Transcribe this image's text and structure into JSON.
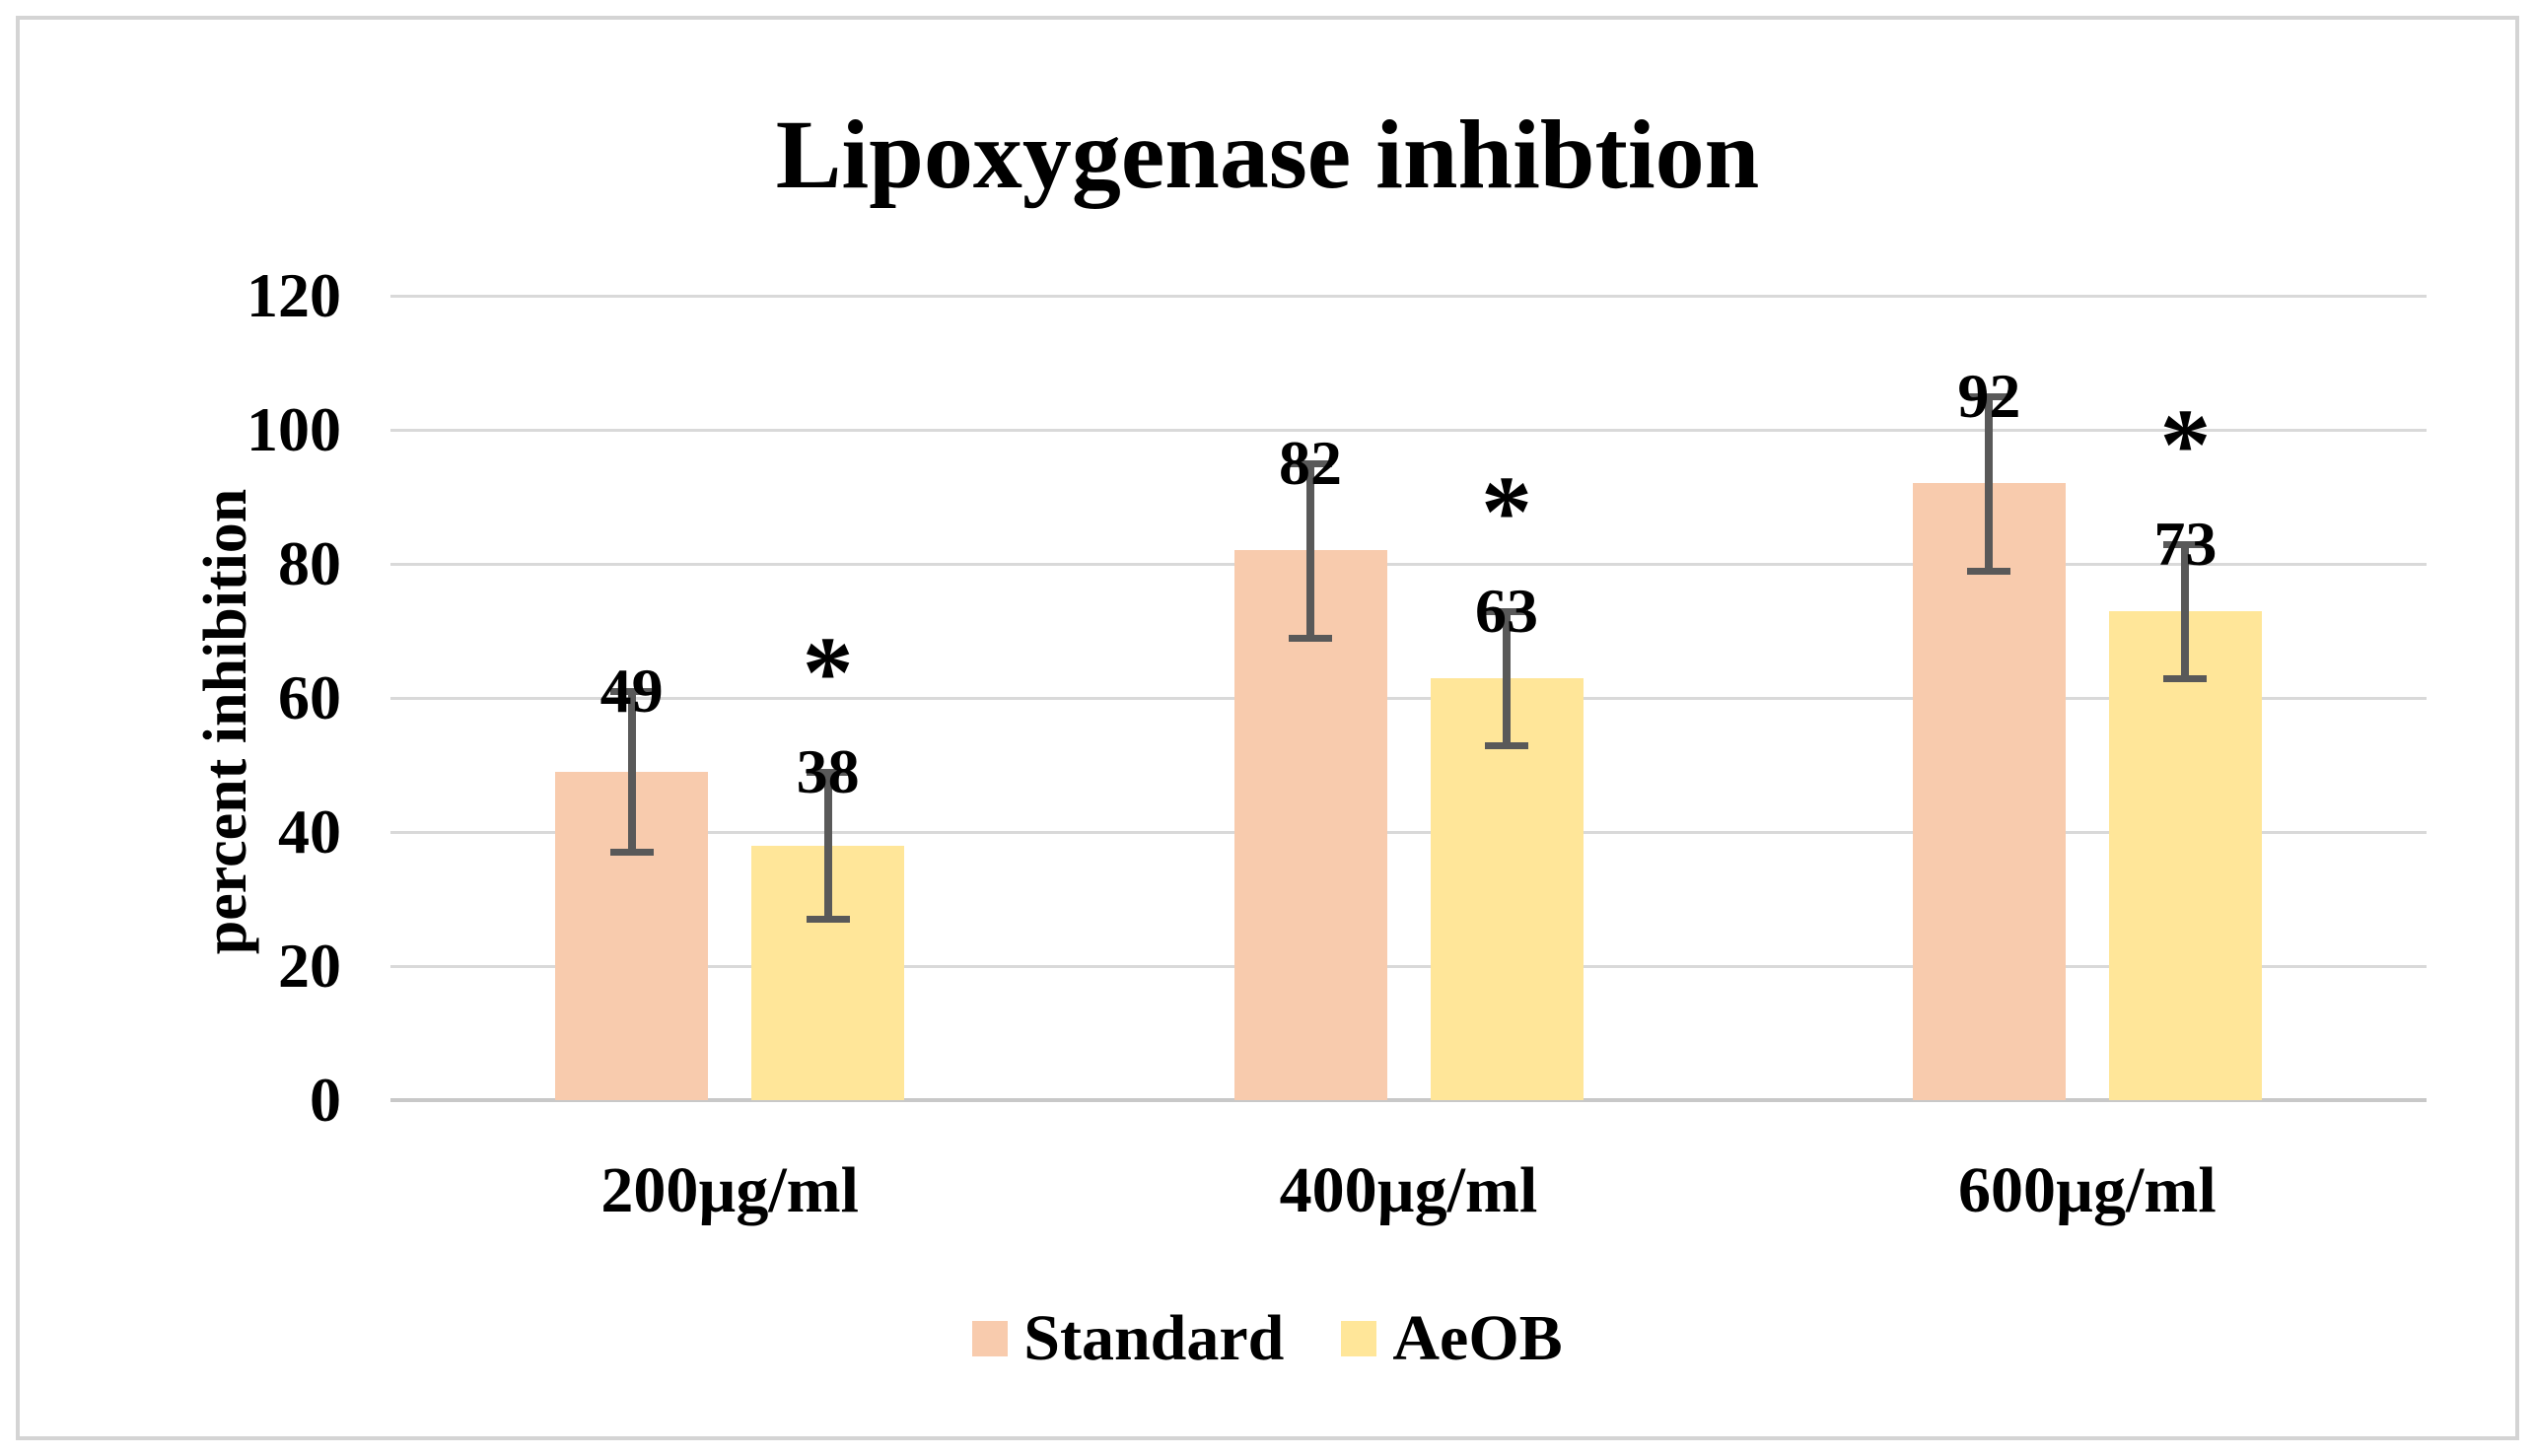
{
  "figure": {
    "title": "Lipoxygenase inhibtion"
  },
  "chart_data": {
    "type": "bar",
    "title": "Lipoxygenase inhibtion",
    "xlabel": "",
    "ylabel": "percent inhibition",
    "categories": [
      "200µg/ml",
      "400µg/ml",
      "600µg/ml"
    ],
    "ylim": [
      0,
      120
    ],
    "yticks": [
      0,
      20,
      40,
      60,
      80,
      100,
      120
    ],
    "grid": true,
    "legend_position": "bottom",
    "series": [
      {
        "name": "Standard",
        "color": "#F8CBAD",
        "values": [
          49,
          82,
          92
        ],
        "errors": [
          12,
          13,
          13
        ],
        "significance": [
          "",
          "",
          ""
        ]
      },
      {
        "name": "AeOB",
        "color": "#FFE699",
        "values": [
          38,
          63,
          73
        ],
        "errors": [
          11,
          10,
          10
        ],
        "significance": [
          "*",
          "*",
          "*"
        ]
      }
    ],
    "error_bar_color": "#595959",
    "gridline_color": "#D9D9D9",
    "background_color": "#FFFFFF"
  }
}
